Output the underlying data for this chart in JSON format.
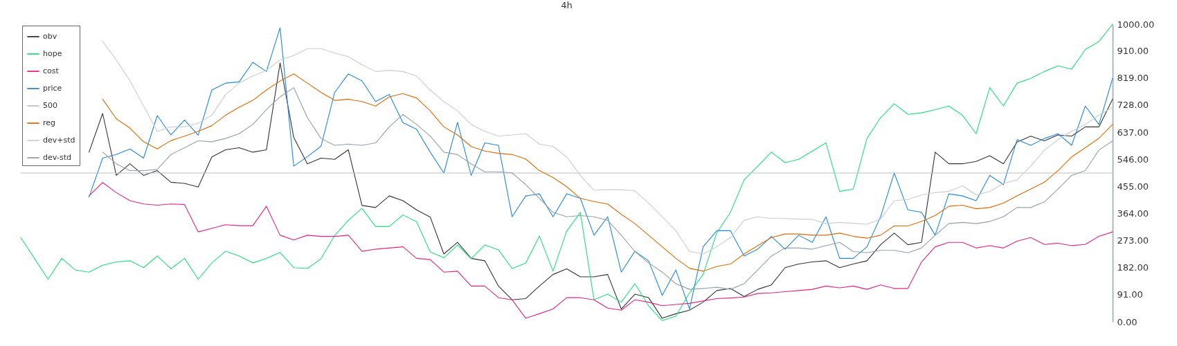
{
  "chart_data": {
    "type": "line",
    "title": "4h",
    "legend": "top left",
    "ylim": [
      0,
      1000
    ],
    "yticks": [
      {
        "value": 0,
        "label": "0.00"
      },
      {
        "value": 91,
        "label": "91.00"
      },
      {
        "value": 182,
        "label": "182.00"
      },
      {
        "value": 273,
        "label": "273.00"
      },
      {
        "value": 364,
        "label": "364.00"
      },
      {
        "value": 455,
        "label": "455.00"
      },
      {
        "value": 546,
        "label": "546.00"
      },
      {
        "value": 637,
        "label": "637.00"
      },
      {
        "value": 728,
        "label": "728.00"
      },
      {
        "value": 819,
        "label": "819.00"
      },
      {
        "value": 910,
        "label": "910.00"
      },
      {
        "value": 1000,
        "label": "1000.00"
      }
    ],
    "categories": [
      null,
      null,
      null,
      null,
      null,
      null,
      null,
      null,
      null,
      null,
      null,
      null,
      null,
      null,
      null,
      null,
      null,
      null,
      null,
      null,
      null,
      null,
      null,
      null,
      null,
      null,
      null,
      null,
      null,
      null,
      null,
      null,
      null,
      null,
      null,
      null,
      null,
      null,
      null,
      null,
      null,
      null,
      null,
      null,
      null,
      null,
      null,
      null,
      null,
      null,
      null,
      null,
      null,
      null,
      null,
      null,
      null,
      null,
      null,
      null,
      null,
      null,
      null,
      null,
      null,
      null,
      null,
      null,
      null,
      null,
      null,
      null,
      null,
      null,
      null,
      null,
      null,
      null,
      null,
      null,
      null
    ],
    "series": [
      {
        "name": "obv",
        "color": "#333333",
        "values": [
          null,
          null,
          null,
          null,
          null,
          570,
          700,
          492,
          531,
          492,
          508,
          469,
          465,
          453,
          554,
          578,
          585,
          570,
          578,
          870,
          620,
          531,
          550,
          546,
          578,
          391,
          384,
          423,
          407,
          376,
          352,
          228,
          267,
          213,
          205,
          120,
          74,
          78,
          120,
          159,
          178,
          151,
          151,
          159,
          43,
          93,
          81,
          12,
          27,
          39,
          66,
          105,
          112,
          85,
          109,
          124,
          182,
          194,
          201,
          205,
          182,
          194,
          205,
          259,
          298,
          259,
          267,
          570,
          531,
          531,
          539,
          558,
          531,
          604,
          624,
          608,
          628,
          624,
          655,
          655,
          748
        ]
      },
      {
        "name": "hope",
        "color": "#1ee27b",
        "values": [
          283,
          213,
          143,
          213,
          174,
          167,
          190,
          201,
          205,
          182,
          221,
          178,
          213,
          143,
          198,
          237,
          221,
          198,
          213,
          233,
          182,
          179,
          212,
          290,
          341,
          381,
          320,
          320,
          359,
          336,
          235,
          215,
          258,
          212,
          258,
          242,
          179,
          197,
          288,
          170,
          305,
          367,
          74,
          93,
          66,
          128,
          54,
          4,
          19,
          97,
          159,
          299,
          368,
          477,
          523,
          570,
          535,
          546,
          574,
          601,
          438,
          446,
          616,
          686,
          733,
          697,
          702,
          713,
          725,
          694,
          632,
          787,
          725,
          802,
          818,
          841,
          860,
          849,
          915,
          942,
          1000
        ]
      },
      {
        "name": "cost",
        "color": "#e8237f",
        "values": [
          null,
          null,
          null,
          null,
          null,
          423,
          468,
          434,
          407,
          396,
          392,
          396,
          394,
          302,
          314,
          326,
          323,
          323,
          388,
          291,
          275,
          291,
          287,
          287,
          291,
          237,
          244,
          248,
          252,
          213,
          209,
          167,
          170,
          120,
          120,
          81,
          74,
          12,
          27,
          43,
          81,
          81,
          74,
          46,
          39,
          74,
          66,
          54,
          58,
          62,
          70,
          78,
          80,
          83,
          95,
          97,
          101,
          105,
          109,
          120,
          114,
          120,
          109,
          124,
          112,
          112,
          201,
          252,
          267,
          267,
          248,
          256,
          248,
          271,
          283,
          260,
          264,
          256,
          260,
          287,
          302
        ]
      },
      {
        "name": "price",
        "color": "#1e88e5",
        "values": [
          null,
          null,
          null,
          null,
          null,
          419,
          550,
          562,
          581,
          550,
          693,
          628,
          678,
          627,
          779,
          802,
          806,
          872,
          841,
          988,
          523,
          555,
          590,
          771,
          833,
          810,
          740,
          764,
          669,
          647,
          570,
          500,
          670,
          492,
          601,
          593,
          353,
          423,
          430,
          353,
          430,
          415,
          291,
          353,
          167,
          237,
          205,
          89,
          174,
          43,
          252,
          306,
          306,
          221,
          244,
          287,
          244,
          291,
          267,
          353,
          213,
          213,
          252,
          353,
          500,
          376,
          368,
          291,
          430,
          423,
          407,
          492,
          461,
          612,
          593,
          616,
          632,
          593,
          725,
          663,
          818
        ]
      },
      {
        "name": "500",
        "color": "#c0c0c0",
        "values": [
          500,
          500,
          500,
          500,
          500,
          500,
          500,
          500,
          500,
          500,
          500,
          500,
          500,
          500,
          500,
          500,
          500,
          500,
          500,
          500,
          500,
          500,
          500,
          500,
          500,
          500,
          500,
          500,
          500,
          500,
          500,
          500,
          500,
          500,
          500,
          500,
          500,
          500,
          500,
          500,
          500,
          500,
          500,
          500,
          500,
          500,
          500,
          500,
          500,
          500,
          500,
          500,
          500,
          500,
          500,
          500,
          500,
          500,
          500,
          500,
          500,
          500,
          500,
          500,
          500,
          500,
          500,
          500,
          500,
          500,
          500,
          500,
          500,
          500,
          500,
          500,
          500,
          500,
          500,
          500,
          500
        ]
      },
      {
        "name": "reg",
        "color": "#e06a00",
        "values": [
          null,
          null,
          null,
          null,
          null,
          null,
          748,
          682,
          651,
          605,
          581,
          609,
          624,
          640,
          659,
          694,
          721,
          744,
          779,
          809,
          833,
          802,
          771,
          744,
          748,
          740,
          725,
          756,
          767,
          752,
          709,
          655,
          628,
          589,
          574,
          566,
          562,
          547,
          508,
          485,
          454,
          415,
          404,
          396,
          361,
          330,
          291,
          252,
          213,
          180,
          170,
          186,
          194,
          228,
          256,
          283,
          295,
          295,
          291,
          291,
          298,
          287,
          281,
          291,
          322,
          322,
          337,
          357,
          388,
          392,
          380,
          384,
          399,
          423,
          446,
          469,
          508,
          554,
          585,
          617,
          663
        ]
      },
      {
        "name": "dev+std",
        "color": "#c9ced3",
        "values": [
          null,
          null,
          null,
          null,
          null,
          null,
          942,
          880,
          810,
          725,
          640,
          655,
          655,
          667,
          694,
          763,
          802,
          826,
          845,
          880,
          895,
          918,
          918,
          903,
          891,
          864,
          841,
          845,
          841,
          826,
          779,
          740,
          709,
          663,
          640,
          624,
          628,
          632,
          597,
          589,
          554,
          492,
          442,
          444,
          444,
          440,
          399,
          353,
          306,
          236,
          228,
          252,
          283,
          341,
          353,
          347,
          347,
          345,
          344,
          330,
          334,
          331,
          328,
          345,
          407,
          411,
          426,
          434,
          438,
          457,
          426,
          438,
          465,
          477,
          523,
          577,
          612,
          640,
          663,
          694,
          721
        ]
      },
      {
        "name": "dev-std",
        "color": "#96a0aa",
        "values": [
          null,
          null,
          null,
          null,
          null,
          null,
          570,
          531,
          508,
          508,
          512,
          562,
          585,
          608,
          605,
          616,
          632,
          663,
          713,
          756,
          787,
          686,
          616,
          593,
          597,
          593,
          601,
          655,
          697,
          663,
          624,
          570,
          562,
          531,
          504,
          504,
          500,
          461,
          415,
          368,
          353,
          357,
          353,
          341,
          291,
          236,
          198,
          167,
          128,
          109,
          112,
          116,
          109,
          128,
          174,
          221,
          248,
          248,
          244,
          256,
          267,
          236,
          232,
          240,
          240,
          232,
          248,
          291,
          330,
          334,
          330,
          337,
          353,
          384,
          384,
          403,
          446,
          492,
          508,
          577,
          608
        ]
      }
    ]
  }
}
